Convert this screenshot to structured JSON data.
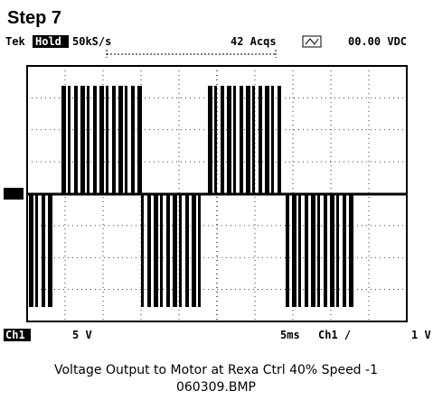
{
  "header": {
    "title": "Step 7",
    "scope": "Tek",
    "mode": "Hold",
    "sample_rate": "50kS/s",
    "acquisitions": "42 Acqs",
    "readout": "00.00 VDC"
  },
  "footer": {
    "channel": "Ch1",
    "volts_per_div": "5 V",
    "time_per_div": "5ms",
    "trigger": "Ch1 /",
    "right": "1 V"
  },
  "caption": {
    "line1": "Voltage Output to Motor at Rexa Ctrl 40% Speed -1",
    "line2": "060309.BMP"
  }
}
